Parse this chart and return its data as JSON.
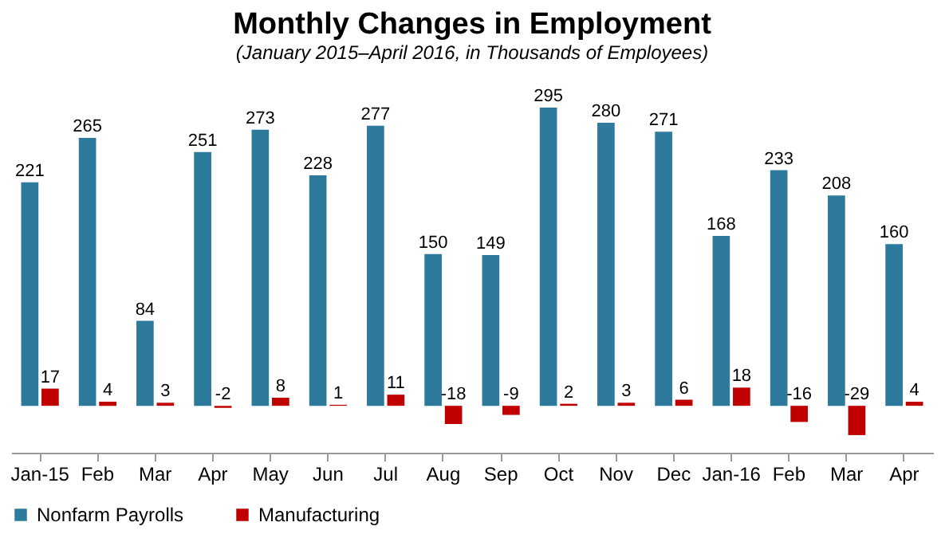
{
  "chart_data": {
    "type": "bar",
    "title": "Monthly Changes in Employment",
    "subtitle": "(January 2015–April 2016, in Thousands of Employees)",
    "categories": [
      "Jan-15",
      "Feb",
      "Mar",
      "Apr",
      "May",
      "Jun",
      "Jul",
      "Aug",
      "Sep",
      "Oct",
      "Nov",
      "Dec",
      "Jan-16",
      "Feb",
      "Mar",
      "Apr"
    ],
    "series": [
      {
        "name": "Nonfarm Payrolls",
        "color": "#2e7a9c",
        "values": [
          221,
          265,
          84,
          251,
          273,
          228,
          277,
          150,
          149,
          295,
          280,
          271,
          168,
          233,
          208,
          160
        ]
      },
      {
        "name": "Manufacturing",
        "color": "#c00000",
        "values": [
          17,
          4,
          3,
          -2,
          8,
          1,
          11,
          -18,
          -9,
          2,
          3,
          6,
          18,
          -16,
          -29,
          4
        ]
      }
    ],
    "data_labels": true,
    "legend": "bottom"
  }
}
